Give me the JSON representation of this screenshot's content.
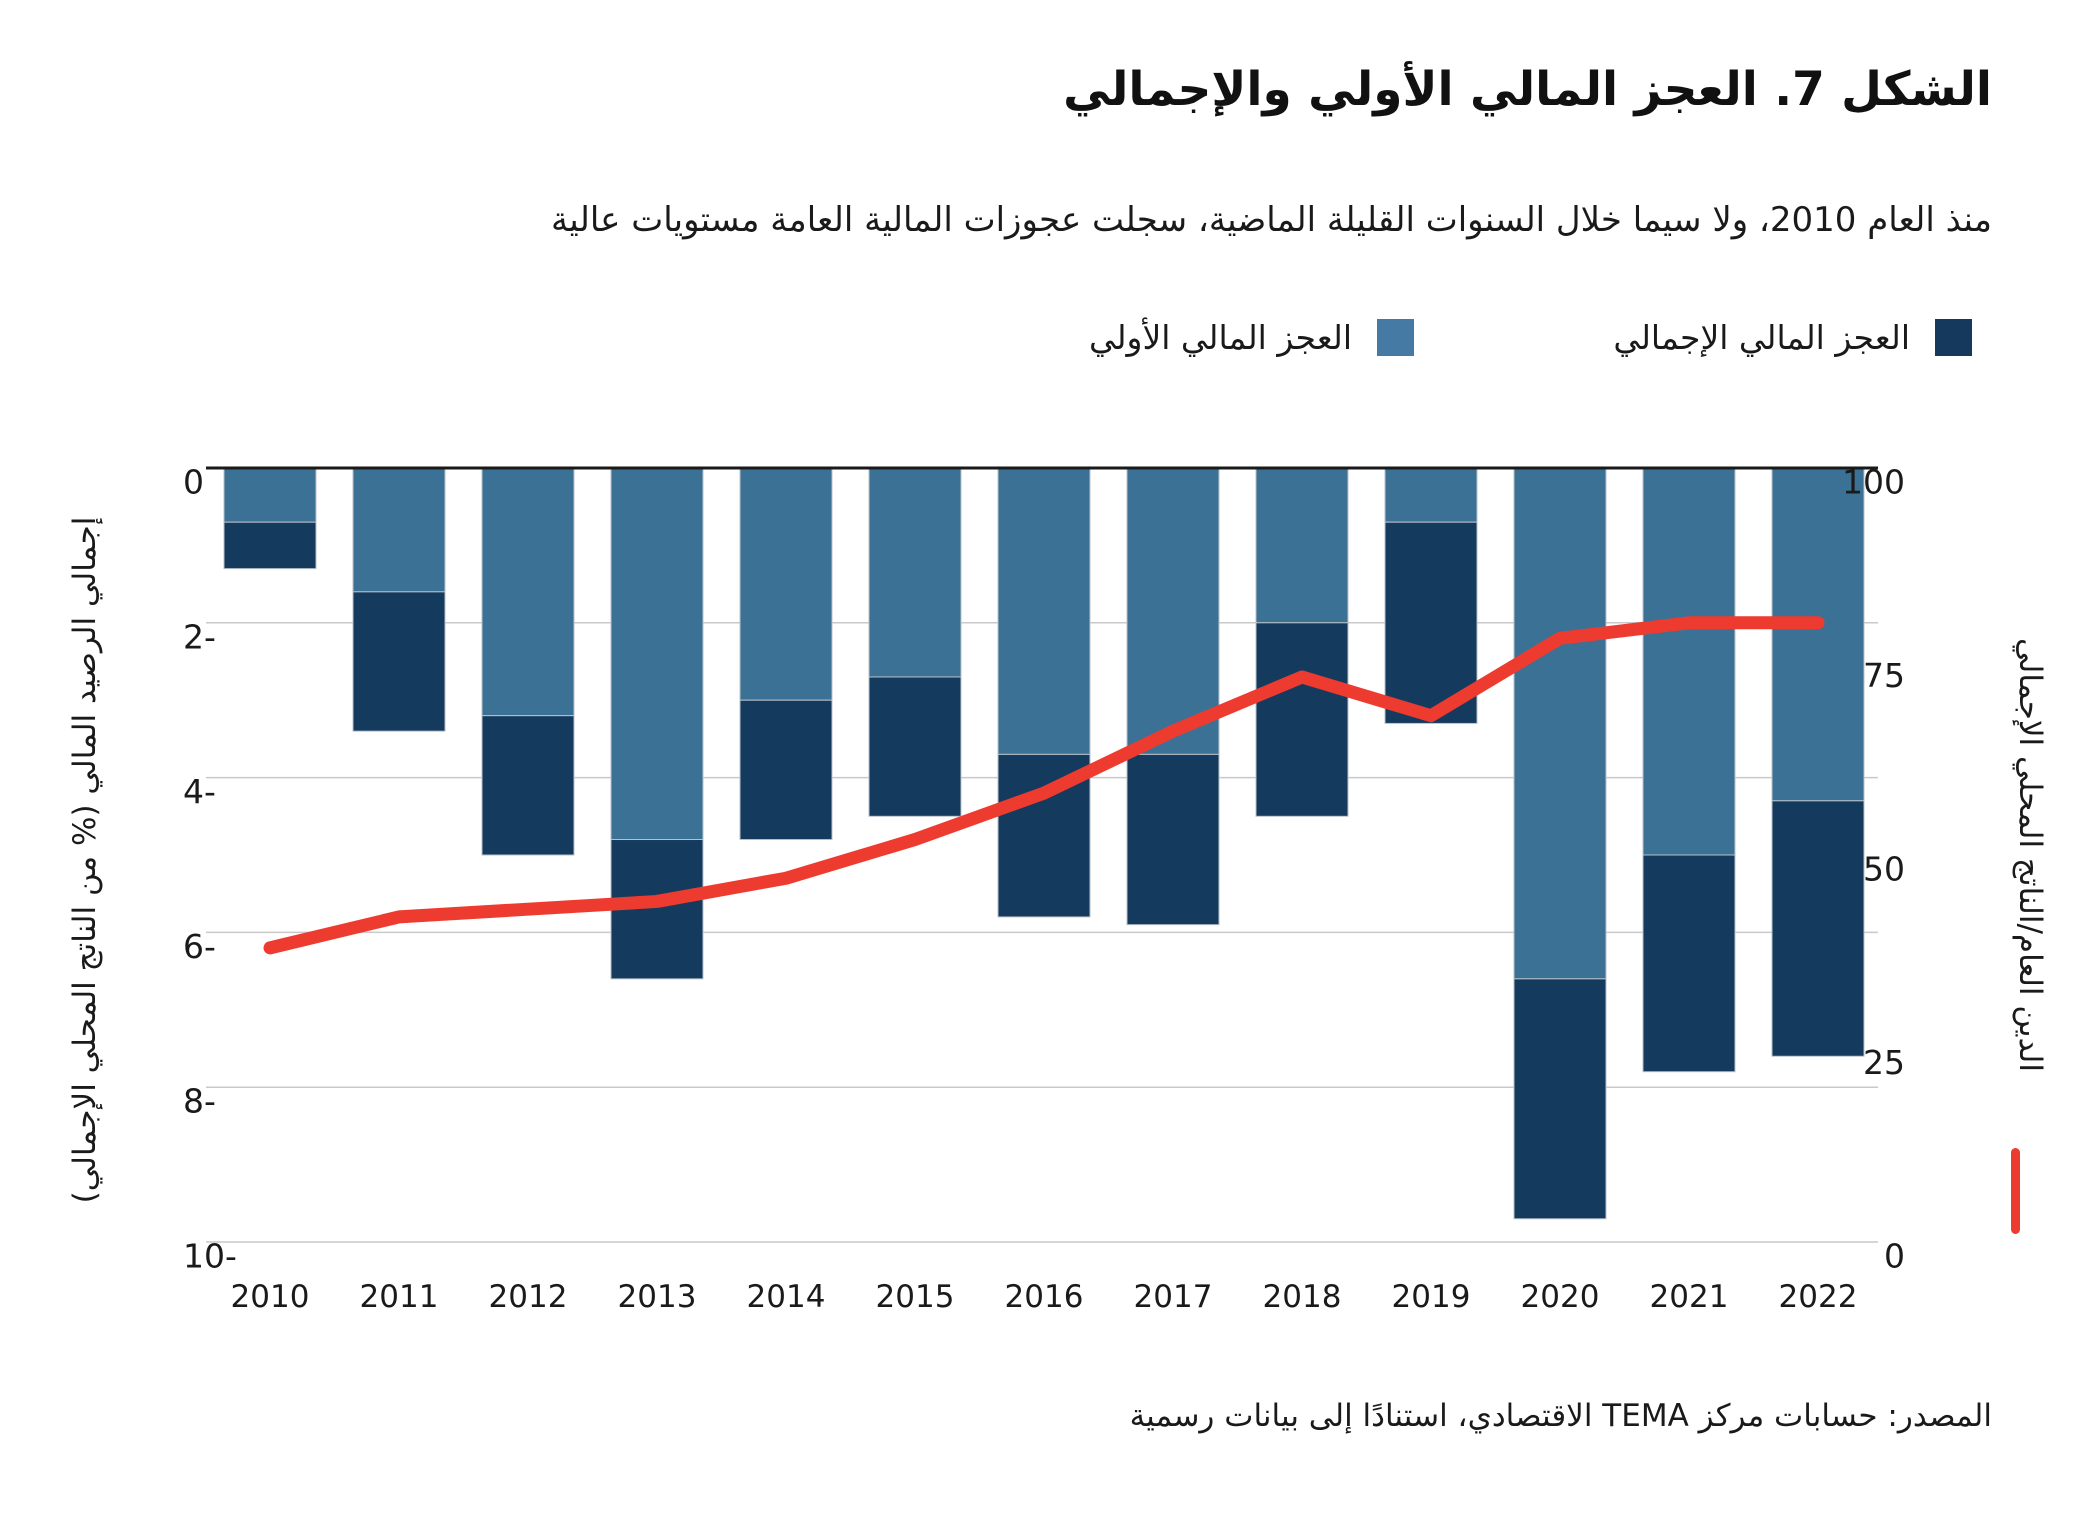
{
  "title": "الشكل 7. العجز المالي الأولي والإجمالي",
  "subtitle": "منذ العام 2010، ولا سيما خلال السنوات القليلة الماضية، سجلت عجوزات المالية العامة مستويات عالية",
  "legend": {
    "items": [
      {
        "label": "العجز المالي الإجمالي",
        "color": "#14395c"
      },
      {
        "label": "العجز المالي الأولي",
        "color": "#447aa3"
      }
    ]
  },
  "source": {
    "text": "المصدر: حسابات مركز TEMA الاقتصادي، استنادًا إلى بيانات رسمية"
  },
  "colors": {
    "bar_primary": "#3b7195",
    "bar_overall": "#143a5e",
    "line": "#ee3b30",
    "grid": "#c9c9c9",
    "axis_line": "#1a1a1a",
    "text": "#1a1a1a"
  },
  "chart_data": {
    "type": "combo-stacked-bar-line",
    "categories": [
      "2010",
      "2011",
      "2012",
      "2013",
      "2014",
      "2015",
      "2016",
      "2017",
      "2018",
      "2019",
      "2020",
      "2021",
      "2022"
    ],
    "series": [
      {
        "name": "العجز المالي الأولي",
        "type": "bar",
        "axis": "left",
        "values": [
          -0.7,
          -1.6,
          -3.2,
          -4.8,
          -3.0,
          -2.7,
          -3.7,
          -3.7,
          -2.0,
          -0.7,
          -6.6,
          -5.0,
          -4.3
        ]
      },
      {
        "name": "العجز المالي الإجمالي",
        "type": "bar",
        "axis": "left",
        "values": [
          -1.3,
          -3.4,
          -5.0,
          -6.6,
          -4.8,
          -4.5,
          -5.8,
          -5.9,
          -4.5,
          -3.3,
          -9.7,
          -7.8,
          -7.6
        ]
      },
      {
        "name": "الدين العام/الناتج المحلي الإجمالي",
        "type": "line",
        "axis": "right",
        "values": [
          38,
          42,
          43,
          44,
          47,
          52,
          58,
          66,
          73,
          68,
          78,
          80,
          80
        ]
      }
    ],
    "left_axis": {
      "title": "إجمالي الرصيد المالي (% من الناتج المحلي الإجمالي)",
      "ticks": [
        0,
        -2,
        -4,
        -6,
        -8,
        -10
      ],
      "min": -10,
      "max": 0
    },
    "right_axis": {
      "title": "الدين العام/الناتج المحلي الإجمالي",
      "ticks": [
        100,
        75,
        50,
        25,
        0
      ],
      "min": 0,
      "max": 100
    },
    "grid": "horizontal",
    "legend_position": "top-right"
  }
}
